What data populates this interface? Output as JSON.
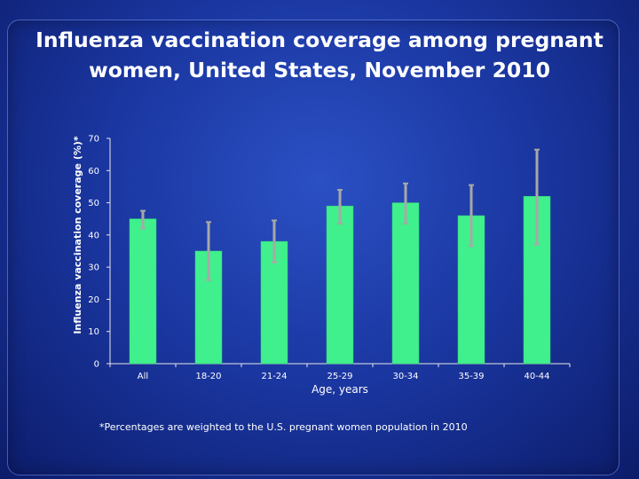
{
  "slide": {
    "title_line1": "Influenza vaccination coverage among pregnant",
    "title_line2": "women, United States, November 2010",
    "footnote": "*Percentages are weighted to the U.S. pregnant women population in 2010"
  },
  "colors": {
    "bar": "#40f08c",
    "bar_stroke": "#2fcf74",
    "error_bar": "#a8a8a8",
    "axis": "#e8e8e8"
  },
  "chart_data": {
    "type": "bar",
    "title": "Influenza vaccination coverage among pregnant women, United States, November 2010",
    "xlabel": "Age, years",
    "ylabel": "Influenza vaccination coverage (%)*",
    "categories": [
      "All",
      "18-20",
      "21-24",
      "25-29",
      "30-34",
      "35-39",
      "40-44"
    ],
    "values": [
      45,
      35,
      38,
      49,
      50,
      46,
      52
    ],
    "error_low": [
      42,
      26,
      31.5,
      43.5,
      43.5,
      36.5,
      37
    ],
    "error_high": [
      47.5,
      44,
      44.5,
      54,
      56,
      55.5,
      66.5
    ],
    "ylim": [
      0,
      70
    ],
    "yticks": [
      0,
      10,
      20,
      30,
      40,
      50,
      60,
      70
    ],
    "grid": false,
    "legend": "none"
  }
}
